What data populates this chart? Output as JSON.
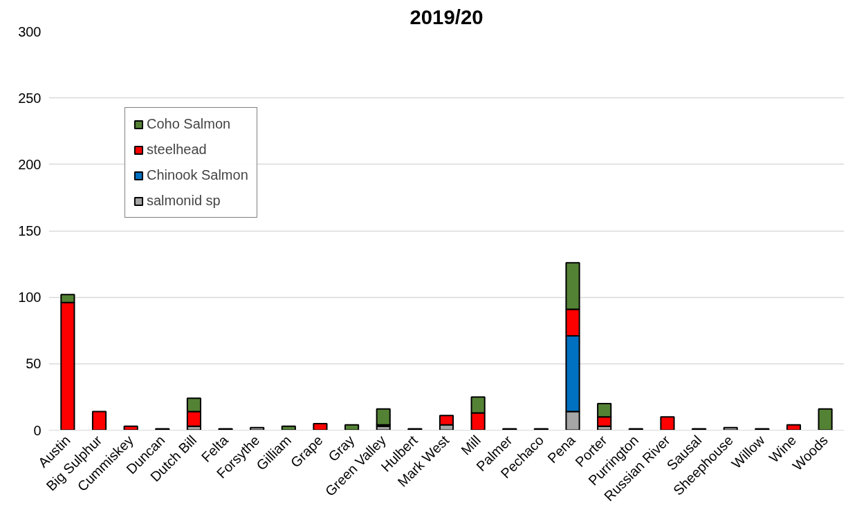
{
  "chart_data": {
    "type": "bar",
    "title": "2019/20",
    "stacked": true,
    "categories": [
      "Austin",
      "Big Sulphur",
      "Cummiskey",
      "Duncan",
      "Dutch Bill",
      "Felta",
      "Forsythe",
      "Gilliam",
      "Grape",
      "Gray",
      "Green Valley",
      "Hulbert",
      "Mark West",
      "Mill",
      "Palmer",
      "Pechaco",
      "Pena",
      "Porter",
      "Purrington",
      "Russian River",
      "Sausal",
      "Sheephouse",
      "Willow",
      "Wine",
      "Woods"
    ],
    "series": [
      {
        "name": "salmonid sp",
        "color": "#a6a6a6",
        "values": [
          0,
          0,
          0,
          1,
          3,
          1,
          2,
          0,
          0,
          0,
          3,
          1,
          4,
          0,
          1,
          1,
          14,
          3,
          1,
          0,
          1,
          2,
          1,
          0,
          0
        ]
      },
      {
        "name": "Chinook Salmon",
        "color": "#0070c0",
        "values": [
          0,
          0,
          0,
          0,
          0,
          0,
          0,
          0,
          0,
          0,
          0,
          0,
          0,
          0,
          0,
          0,
          57,
          0,
          0,
          0,
          0,
          0,
          0,
          0,
          0
        ]
      },
      {
        "name": "steelhead",
        "color": "#ff0000",
        "values": [
          96,
          14,
          3,
          0,
          11,
          0,
          0,
          0,
          5,
          0,
          1,
          0,
          7,
          13,
          0,
          0,
          20,
          7,
          0,
          10,
          0,
          0,
          0,
          4,
          0
        ]
      },
      {
        "name": "Coho Salmon",
        "color": "#548235",
        "values": [
          6,
          0,
          0,
          0,
          10,
          0,
          0,
          3,
          0,
          4,
          12,
          0,
          0,
          12,
          0,
          0,
          35,
          10,
          0,
          0,
          0,
          0,
          0,
          0,
          16
        ]
      }
    ],
    "ylim": [
      0,
      300
    ],
    "yticks": [
      0,
      50,
      100,
      150,
      200,
      250,
      300
    ],
    "grid": "y",
    "legend": "top left"
  }
}
